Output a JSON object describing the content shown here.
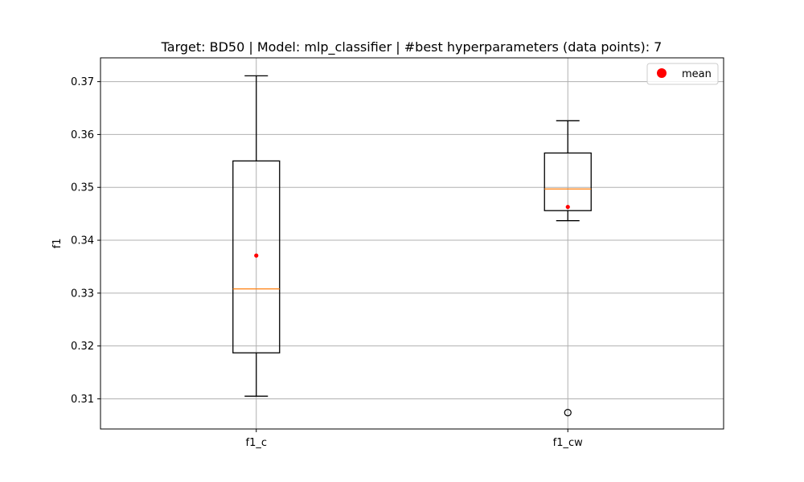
{
  "chart_data": {
    "type": "boxplot",
    "title": "Target: BD50 | Model: mlp_classifier | #best hyperparameters (data points): 7",
    "xlabel": "",
    "ylabel": "f1",
    "ylim": [
      0.3043,
      0.3745
    ],
    "yticks": [
      0.31,
      0.32,
      0.33,
      0.34,
      0.35,
      0.36,
      0.37
    ],
    "ytick_labels": [
      "0.31",
      "0.32",
      "0.33",
      "0.34",
      "0.35",
      "0.36",
      "0.37"
    ],
    "grid": true,
    "categories": [
      "f1_c",
      "f1_cw"
    ],
    "boxes": [
      {
        "name": "f1_c",
        "whisker_low": 0.3105,
        "q1": 0.3187,
        "median": 0.3308,
        "q3": 0.355,
        "whisker_high": 0.3711,
        "mean": 0.3371,
        "outliers": []
      },
      {
        "name": "f1_cw",
        "whisker_low": 0.3437,
        "q1": 0.3456,
        "median": 0.3497,
        "q3": 0.3565,
        "whisker_high": 0.3626,
        "mean": 0.3463,
        "outliers": [
          0.3074
        ]
      }
    ],
    "legend": {
      "position": "top-right",
      "entries": [
        {
          "label": "mean",
          "color": "#ff0000"
        }
      ]
    },
    "colors": {
      "median": "#ff7f0e",
      "mean": "#ff0000",
      "box": "#000000",
      "grid": "#b0b0b0"
    }
  }
}
